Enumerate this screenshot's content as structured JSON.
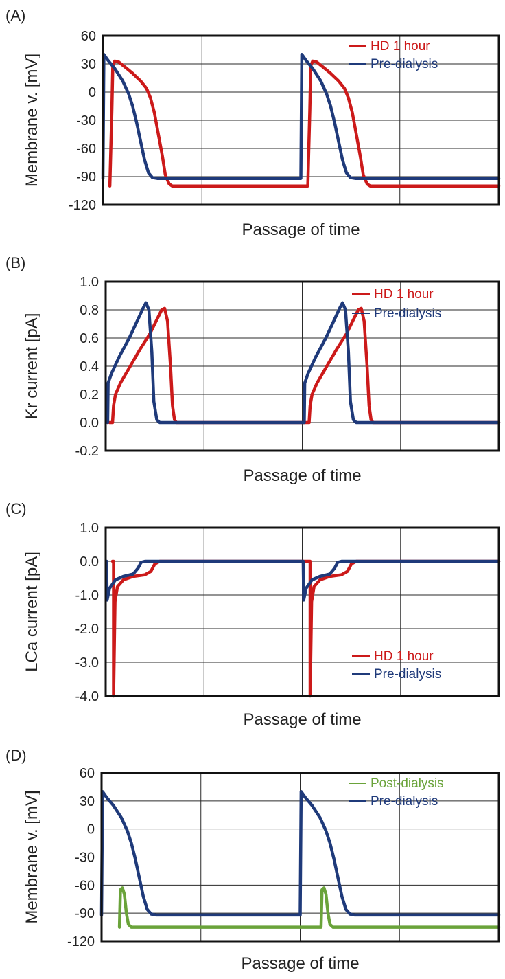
{
  "colors": {
    "red": "#cc1a1a",
    "blue": "#1f3a7a",
    "green": "#6aa33a"
  },
  "chart_data": [
    {
      "type": "line",
      "panel_label": "(A)",
      "ylabel": "Membrane v. [mV]",
      "xlabel": "Passage of time",
      "ylim": [
        -120,
        60
      ],
      "yticks": [
        "60",
        "30",
        "0",
        "-30",
        "-60",
        "-90",
        "-120"
      ],
      "x_range": [
        0,
        4
      ],
      "x_gridlines": [
        1,
        2,
        3
      ],
      "legend": [
        "HD 1 hour",
        "Pre-dialysis"
      ],
      "series": [
        {
          "name": "HD 1 hour",
          "color_key": "red",
          "legend_index": 0,
          "points": [
            [
              0.07,
              -100
            ],
            [
              0.09,
              -20
            ],
            [
              0.1,
              28
            ],
            [
              0.12,
              33
            ],
            [
              0.16,
              32
            ],
            [
              0.22,
              27
            ],
            [
              0.3,
              20
            ],
            [
              0.38,
              12
            ],
            [
              0.44,
              4
            ],
            [
              0.48,
              -6
            ],
            [
              0.52,
              -22
            ],
            [
              0.56,
              -45
            ],
            [
              0.6,
              -68
            ],
            [
              0.63,
              -88
            ],
            [
              0.67,
              -98
            ],
            [
              0.7,
              -100
            ],
            [
              2.0,
              -100
            ],
            [
              2.07,
              -100
            ],
            [
              2.09,
              -20
            ],
            [
              2.1,
              28
            ],
            [
              2.12,
              33
            ],
            [
              2.16,
              32
            ],
            [
              2.22,
              27
            ],
            [
              2.3,
              20
            ],
            [
              2.38,
              12
            ],
            [
              2.44,
              4
            ],
            [
              2.48,
              -6
            ],
            [
              2.52,
              -22
            ],
            [
              2.56,
              -45
            ],
            [
              2.6,
              -68
            ],
            [
              2.63,
              -88
            ],
            [
              2.67,
              -98
            ],
            [
              2.7,
              -100
            ],
            [
              4.0,
              -100
            ]
          ]
        },
        {
          "name": "Pre-dialysis",
          "color_key": "blue",
          "legend_index": 1,
          "points": [
            [
              0.0,
              -92
            ],
            [
              0.01,
              40
            ],
            [
              0.05,
              34
            ],
            [
              0.12,
              25
            ],
            [
              0.2,
              12
            ],
            [
              0.26,
              -2
            ],
            [
              0.3,
              -15
            ],
            [
              0.34,
              -32
            ],
            [
              0.38,
              -52
            ],
            [
              0.42,
              -72
            ],
            [
              0.46,
              -86
            ],
            [
              0.5,
              -91
            ],
            [
              0.55,
              -92
            ],
            [
              1.99,
              -92
            ],
            [
              2.0,
              -92
            ],
            [
              2.01,
              40
            ],
            [
              2.05,
              34
            ],
            [
              2.12,
              25
            ],
            [
              2.2,
              12
            ],
            [
              2.26,
              -2
            ],
            [
              2.3,
              -15
            ],
            [
              2.34,
              -32
            ],
            [
              2.38,
              -52
            ],
            [
              2.42,
              -72
            ],
            [
              2.46,
              -86
            ],
            [
              2.5,
              -91
            ],
            [
              2.55,
              -92
            ],
            [
              4.0,
              -92
            ]
          ]
        }
      ]
    },
    {
      "type": "line",
      "panel_label": "(B)",
      "ylabel": "Kr current [pA]",
      "xlabel": "Passage of time",
      "ylim": [
        -0.2,
        1.0
      ],
      "yticks": [
        "1.0",
        "0.8",
        "0.6",
        "0.4",
        "0.2",
        "0.0",
        "-0.2"
      ],
      "x_range": [
        0,
        4
      ],
      "x_gridlines": [
        1,
        2,
        3
      ],
      "legend": [
        "HD 1 hour",
        "Pre-dialysis"
      ],
      "series": [
        {
          "name": "HD 1 hour",
          "color_key": "red",
          "legend_index": 0,
          "points": [
            [
              0.04,
              0.0
            ],
            [
              0.07,
              0.0
            ],
            [
              0.08,
              0.12
            ],
            [
              0.1,
              0.2
            ],
            [
              0.15,
              0.28
            ],
            [
              0.25,
              0.4
            ],
            [
              0.35,
              0.52
            ],
            [
              0.45,
              0.63
            ],
            [
              0.52,
              0.73
            ],
            [
              0.57,
              0.8
            ],
            [
              0.6,
              0.81
            ],
            [
              0.63,
              0.72
            ],
            [
              0.66,
              0.4
            ],
            [
              0.68,
              0.12
            ],
            [
              0.7,
              0.02
            ],
            [
              0.72,
              0.0
            ],
            [
              2.0,
              0.0
            ],
            [
              2.07,
              0.0
            ],
            [
              2.08,
              0.12
            ],
            [
              2.1,
              0.2
            ],
            [
              2.15,
              0.28
            ],
            [
              2.25,
              0.4
            ],
            [
              2.35,
              0.52
            ],
            [
              2.45,
              0.63
            ],
            [
              2.52,
              0.73
            ],
            [
              2.57,
              0.8
            ],
            [
              2.6,
              0.81
            ],
            [
              2.63,
              0.72
            ],
            [
              2.66,
              0.4
            ],
            [
              2.68,
              0.12
            ],
            [
              2.7,
              0.02
            ],
            [
              2.72,
              0.0
            ],
            [
              4.0,
              0.0
            ]
          ]
        },
        {
          "name": "Pre-dialysis",
          "color_key": "blue",
          "legend_index": 1,
          "points": [
            [
              0.02,
              0.0
            ],
            [
              0.025,
              0.28
            ],
            [
              0.06,
              0.35
            ],
            [
              0.14,
              0.47
            ],
            [
              0.24,
              0.6
            ],
            [
              0.32,
              0.72
            ],
            [
              0.38,
              0.81
            ],
            [
              0.41,
              0.85
            ],
            [
              0.44,
              0.8
            ],
            [
              0.47,
              0.5
            ],
            [
              0.49,
              0.15
            ],
            [
              0.52,
              0.02
            ],
            [
              0.55,
              0.0
            ],
            [
              2.0,
              0.0
            ],
            [
              2.02,
              0.0
            ],
            [
              2.025,
              0.28
            ],
            [
              2.06,
              0.35
            ],
            [
              2.14,
              0.47
            ],
            [
              2.24,
              0.6
            ],
            [
              2.32,
              0.72
            ],
            [
              2.38,
              0.81
            ],
            [
              2.41,
              0.85
            ],
            [
              2.44,
              0.8
            ],
            [
              2.47,
              0.5
            ],
            [
              2.49,
              0.15
            ],
            [
              2.52,
              0.02
            ],
            [
              2.55,
              0.0
            ],
            [
              4.0,
              0.0
            ]
          ]
        }
      ]
    },
    {
      "type": "line",
      "panel_label": "(C)",
      "ylabel": "LCa current [pA]",
      "xlabel": "Passage of time",
      "ylim": [
        -4.0,
        1.0
      ],
      "yticks": [
        "1.0",
        "0.0",
        "-1.0",
        "-2.0",
        "-3.0",
        "-4.0"
      ],
      "x_range": [
        0,
        4
      ],
      "x_gridlines": [
        1,
        2,
        3
      ],
      "legend": [
        "HD 1 hour",
        "Pre-dialysis"
      ],
      "series": [
        {
          "name": "HD 1 hour",
          "color_key": "red",
          "legend_index": 0,
          "points": [
            [
              0.07,
              0.0
            ],
            [
              0.08,
              0.0
            ],
            [
              0.08,
              -4.0
            ],
            [
              0.095,
              -1.2
            ],
            [
              0.12,
              -0.75
            ],
            [
              0.18,
              -0.55
            ],
            [
              0.28,
              -0.45
            ],
            [
              0.4,
              -0.4
            ],
            [
              0.46,
              -0.3
            ],
            [
              0.5,
              -0.08
            ],
            [
              0.55,
              0.0
            ],
            [
              2.0,
              0.0
            ],
            [
              2.07,
              0.0
            ],
            [
              2.08,
              0.0
            ],
            [
              2.08,
              -4.0
            ],
            [
              2.095,
              -1.2
            ],
            [
              2.12,
              -0.75
            ],
            [
              2.18,
              -0.55
            ],
            [
              2.28,
              -0.45
            ],
            [
              2.4,
              -0.4
            ],
            [
              2.46,
              -0.3
            ],
            [
              2.5,
              -0.08
            ],
            [
              2.55,
              0.0
            ],
            [
              4.0,
              0.0
            ]
          ]
        },
        {
          "name": "Pre-dialysis",
          "color_key": "blue",
          "legend_index": 1,
          "points": [
            [
              0.01,
              0.0
            ],
            [
              0.015,
              -1.15
            ],
            [
              0.04,
              -0.8
            ],
            [
              0.1,
              -0.55
            ],
            [
              0.18,
              -0.45
            ],
            [
              0.28,
              -0.38
            ],
            [
              0.33,
              -0.2
            ],
            [
              0.36,
              -0.03
            ],
            [
              0.4,
              0.0
            ],
            [
              2.0,
              0.0
            ],
            [
              2.01,
              0.0
            ],
            [
              2.015,
              -1.15
            ],
            [
              2.04,
              -0.8
            ],
            [
              2.1,
              -0.55
            ],
            [
              2.18,
              -0.45
            ],
            [
              2.28,
              -0.38
            ],
            [
              2.33,
              -0.2
            ],
            [
              2.36,
              -0.03
            ],
            [
              2.4,
              0.0
            ],
            [
              4.0,
              0.0
            ]
          ]
        }
      ]
    },
    {
      "type": "line",
      "panel_label": "(D)",
      "ylabel": "Membrane v. [mV]",
      "xlabel": "Passage of time",
      "ylim": [
        -120,
        60
      ],
      "yticks": [
        "60",
        "30",
        "0",
        "-30",
        "-60",
        "-90",
        "-120"
      ],
      "x_range": [
        0,
        4
      ],
      "x_gridlines": [
        1,
        2,
        3
      ],
      "legend": [
        "Post-dialysis",
        "Pre-dialysis"
      ],
      "series": [
        {
          "name": "Post-dialysis",
          "color_key": "green",
          "legend_index": 0,
          "points": [
            [
              0.18,
              -105
            ],
            [
              0.19,
              -65
            ],
            [
              0.21,
              -63
            ],
            [
              0.23,
              -70
            ],
            [
              0.25,
              -90
            ],
            [
              0.27,
              -102
            ],
            [
              0.3,
              -105
            ],
            [
              2.21,
              -105
            ],
            [
              2.22,
              -65
            ],
            [
              2.24,
              -63
            ],
            [
              2.26,
              -70
            ],
            [
              2.28,
              -90
            ],
            [
              2.3,
              -102
            ],
            [
              2.33,
              -105
            ],
            [
              4.0,
              -105
            ]
          ]
        },
        {
          "name": "Pre-dialysis",
          "color_key": "blue",
          "legend_index": 1,
          "points": [
            [
              0.0,
              -92
            ],
            [
              0.01,
              40
            ],
            [
              0.05,
              34
            ],
            [
              0.12,
              25
            ],
            [
              0.2,
              12
            ],
            [
              0.26,
              -2
            ],
            [
              0.3,
              -15
            ],
            [
              0.34,
              -32
            ],
            [
              0.38,
              -52
            ],
            [
              0.42,
              -72
            ],
            [
              0.46,
              -86
            ],
            [
              0.5,
              -91
            ],
            [
              0.55,
              -92
            ],
            [
              1.99,
              -92
            ],
            [
              2.0,
              -92
            ],
            [
              2.01,
              40
            ],
            [
              2.05,
              34
            ],
            [
              2.12,
              25
            ],
            [
              2.2,
              12
            ],
            [
              2.26,
              -2
            ],
            [
              2.3,
              -15
            ],
            [
              2.34,
              -32
            ],
            [
              2.38,
              -52
            ],
            [
              2.42,
              -72
            ],
            [
              2.46,
              -86
            ],
            [
              2.5,
              -91
            ],
            [
              2.55,
              -92
            ],
            [
              4.0,
              -92
            ]
          ]
        }
      ]
    }
  ]
}
